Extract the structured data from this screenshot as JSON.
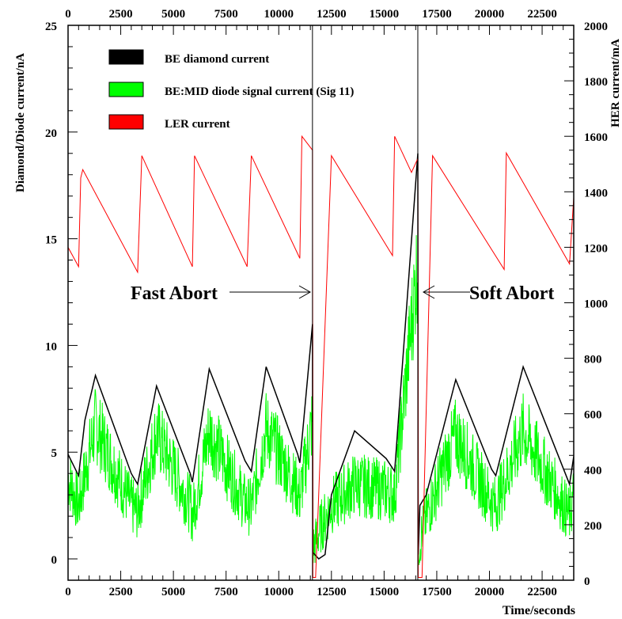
{
  "chart_data": {
    "type": "line",
    "xlabel": "Time/seconds",
    "ylabel_left": "Diamond/Diode current/nA",
    "ylabel_right": "HER current/mA",
    "xlim": [
      0,
      24000
    ],
    "ylim_left": [
      -1,
      25
    ],
    "ylim_right": [
      0,
      2000
    ],
    "x_ticks": [
      0,
      2500,
      5000,
      7500,
      10000,
      12500,
      15000,
      17500,
      20000,
      22500
    ],
    "x_tick_labels": [
      "0",
      "2500",
      "5000",
      "7500",
      "10000",
      "12500",
      "15000",
      "17500",
      "20000",
      "22500"
    ],
    "y_left_ticks": [
      0,
      5,
      10,
      15,
      20,
      25
    ],
    "y_left_tick_labels": [
      "0",
      "5",
      "10",
      "15",
      "20",
      "25"
    ],
    "y_right_ticks": [
      0,
      200,
      400,
      600,
      800,
      1000,
      1200,
      1400,
      1600,
      1800,
      2000
    ],
    "y_right_tick_labels": [
      "0",
      "200",
      "400",
      "600",
      "800",
      "1000",
      "1200",
      "1400",
      "1600",
      "1800",
      "2000"
    ],
    "grid": false,
    "legend_position": "top-left",
    "legend": [
      {
        "label": "BE diamond current",
        "color": "#000000"
      },
      {
        "label": "BE:MID diode signal current (Sig 11)",
        "color": "#00ff00"
      },
      {
        "label": "LER current",
        "color": "#ff0000"
      }
    ],
    "vertical_markers": [
      11600,
      16600
    ],
    "annotations": [
      {
        "text": "Fast Abort",
        "arrow_to_x": 11600,
        "y": 12.5
      },
      {
        "text": "Soft Abort",
        "arrow_to_x": 16600,
        "y": 12.5
      }
    ],
    "series": [
      {
        "name": "LER current",
        "axis": "right",
        "color": "#ff0000",
        "points": [
          [
            0,
            1200
          ],
          [
            500,
            1130
          ],
          [
            600,
            1450
          ],
          [
            700,
            1480
          ],
          [
            3300,
            1110
          ],
          [
            3500,
            1530
          ],
          [
            5900,
            1130
          ],
          [
            6000,
            1530
          ],
          [
            8500,
            1130
          ],
          [
            8700,
            1530
          ],
          [
            11000,
            1160
          ],
          [
            11100,
            1600
          ],
          [
            11600,
            1550
          ],
          [
            11620,
            10
          ],
          [
            11750,
            10
          ],
          [
            12500,
            1530
          ],
          [
            15400,
            1170
          ],
          [
            15500,
            1600
          ],
          [
            16300,
            1470
          ],
          [
            16600,
            1520
          ],
          [
            16620,
            10
          ],
          [
            16800,
            10
          ],
          [
            17300,
            1530
          ],
          [
            20700,
            1120
          ],
          [
            20800,
            1540
          ],
          [
            23800,
            1140
          ],
          [
            24000,
            1380
          ]
        ]
      },
      {
        "name": "BE diamond current",
        "axis": "left",
        "color": "#000000",
        "points": [
          [
            0,
            4.9
          ],
          [
            500,
            3.9
          ],
          [
            800,
            6.5
          ],
          [
            1300,
            8.6
          ],
          [
            3000,
            4.0
          ],
          [
            3300,
            3.5
          ],
          [
            4200,
            8.1
          ],
          [
            5800,
            4.0
          ],
          [
            5900,
            3.6
          ],
          [
            6700,
            8.9
          ],
          [
            8400,
            4.6
          ],
          [
            8700,
            4.1
          ],
          [
            9400,
            9.0
          ],
          [
            10900,
            4.9
          ],
          [
            11000,
            4.5
          ],
          [
            11600,
            11.0
          ],
          [
            11620,
            0.3
          ],
          [
            11900,
            0.0
          ],
          [
            12200,
            0.2
          ],
          [
            12500,
            3.0
          ],
          [
            13600,
            6.0
          ],
          [
            15100,
            4.7
          ],
          [
            15500,
            4.1
          ],
          [
            16600,
            19.0
          ],
          [
            16620,
            0.2
          ],
          [
            16700,
            2.5
          ],
          [
            17000,
            3.0
          ],
          [
            18400,
            8.4
          ],
          [
            20100,
            4.2
          ],
          [
            20300,
            3.9
          ],
          [
            21600,
            9.0
          ],
          [
            23800,
            3.5
          ],
          [
            24000,
            4.8
          ]
        ]
      },
      {
        "name": "BE:MID diode signal current (Sig 11)",
        "axis": "left",
        "color": "#00ff00",
        "points": [
          [
            0,
            3.8
          ],
          [
            500,
            2.5
          ],
          [
            1300,
            6.3
          ],
          [
            3000,
            2.5
          ],
          [
            3300,
            2.2
          ],
          [
            4200,
            5.9
          ],
          [
            5800,
            2.5
          ],
          [
            5900,
            2.0
          ],
          [
            6700,
            6.0
          ],
          [
            8400,
            2.6
          ],
          [
            8700,
            2.4
          ],
          [
            9400,
            6.1
          ],
          [
            10900,
            3.2
          ],
          [
            11000,
            2.9
          ],
          [
            11600,
            6.5
          ],
          [
            11620,
            0.5
          ],
          [
            12000,
            1.5
          ],
          [
            12500,
            2.5
          ],
          [
            13600,
            3.5
          ],
          [
            15100,
            3.2
          ],
          [
            15500,
            3.0
          ],
          [
            16600,
            14.0
          ],
          [
            16620,
            0.5
          ],
          [
            17000,
            2.0
          ],
          [
            18400,
            5.8
          ],
          [
            20100,
            2.7
          ],
          [
            20300,
            2.5
          ],
          [
            21600,
            6.0
          ],
          [
            23800,
            2.0
          ],
          [
            24000,
            3.0
          ]
        ]
      }
    ]
  }
}
